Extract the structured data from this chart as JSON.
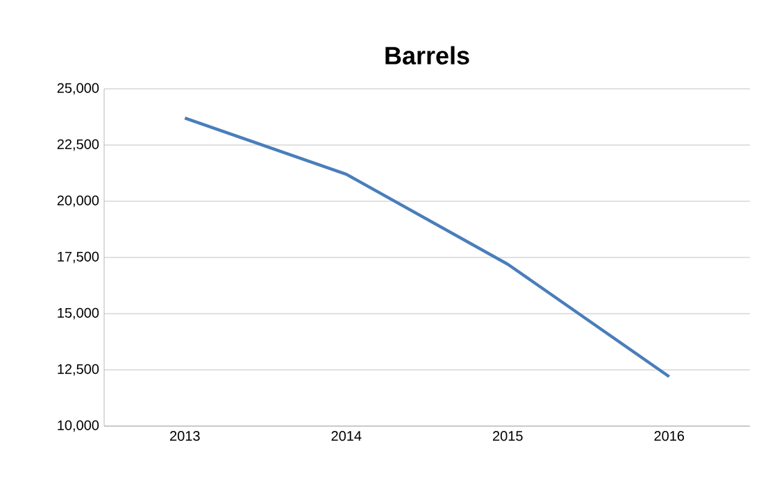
{
  "chart_data": {
    "type": "line",
    "title": "Barrels",
    "categories": [
      "2013",
      "2014",
      "2015",
      "2016"
    ],
    "series": [
      {
        "color": "#4a7ebb",
        "values": [
          23700,
          21200,
          17200,
          12200
        ]
      }
    ],
    "ylim": [
      10000,
      25000
    ],
    "yticks": [
      {
        "value": 10000,
        "label": "10,000"
      },
      {
        "value": 12500,
        "label": "12,500"
      },
      {
        "value": 15000,
        "label": "15,000"
      },
      {
        "value": 17500,
        "label": "17,500"
      },
      {
        "value": 20000,
        "label": "20,000"
      },
      {
        "value": 22500,
        "label": "22,500"
      },
      {
        "value": 25000,
        "label": "25,000"
      }
    ],
    "grid": "y",
    "marker": "none",
    "line_style": "solid"
  }
}
